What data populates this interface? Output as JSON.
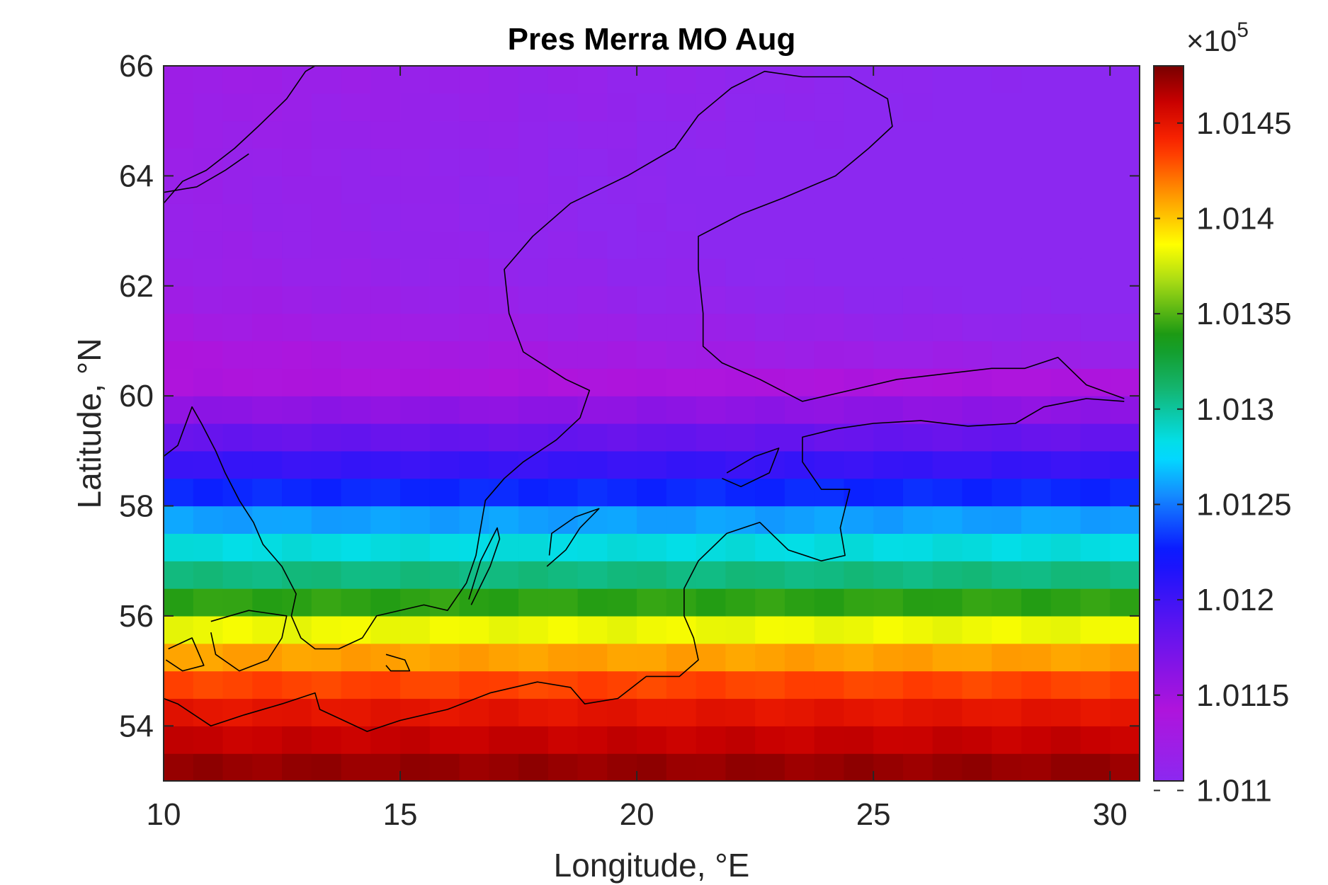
{
  "chart_data": {
    "type": "heatmap",
    "title": "Pres Merra MO Aug",
    "xlabel": "Longitude, °E",
    "ylabel": "Latitude, °N",
    "xlim": [
      10,
      30.625
    ],
    "ylim": [
      53,
      66
    ],
    "x_ticks": [
      10,
      15,
      20,
      25,
      30
    ],
    "y_ticks": [
      54,
      56,
      58,
      60,
      62,
      64,
      66
    ],
    "colorbar": {
      "multiplier_label": "×10",
      "multiplier_exponent": "5",
      "range": [
        1.01105,
        1.0148
      ],
      "ticks": [
        1.011,
        1.0115,
        1.012,
        1.0125,
        1.013,
        1.0135,
        1.014,
        1.0145
      ],
      "tick_labels": [
        "1.011",
        "1.0115",
        "1.012",
        "1.0125",
        "1.013",
        "1.0135",
        "1.014",
        "1.0145"
      ]
    },
    "grid": {
      "lon_start": 10,
      "lon_step": 0.625,
      "lat_start": 53,
      "lat_step": 0.5,
      "lon_count": 33,
      "lat_count": 26,
      "value_profile_by_lat": [
        {
          "lat": 53.0,
          "value": 1.01478
        },
        {
          "lat": 53.5,
          "value": 1.01468
        },
        {
          "lat": 54.0,
          "value": 1.01455
        },
        {
          "lat": 54.5,
          "value": 1.01445
        },
        {
          "lat": 55.0,
          "value": 1.0142
        },
        {
          "lat": 55.5,
          "value": 1.014
        },
        {
          "lat": 56.0,
          "value": 1.01365
        },
        {
          "lat": 56.5,
          "value": 1.0132
        },
        {
          "lat": 57.0,
          "value": 1.01295
        },
        {
          "lat": 57.5,
          "value": 1.01275
        },
        {
          "lat": 58.0,
          "value": 1.01245
        },
        {
          "lat": 58.5,
          "value": 1.01215
        },
        {
          "lat": 59.0,
          "value": 1.01192
        },
        {
          "lat": 59.5,
          "value": 1.0117
        },
        {
          "lat": 60.0,
          "value": 1.0115
        },
        {
          "lat": 60.5,
          "value": 1.01135
        },
        {
          "lat": 61.0,
          "value": 1.01125
        },
        {
          "lat": 61.5,
          "value": 1.01118
        },
        {
          "lat": 62.0,
          "value": 1.01112
        },
        {
          "lat": 63.0,
          "value": 1.01108
        },
        {
          "lat": 64.0,
          "value": 1.01108
        },
        {
          "lat": 65.0,
          "value": 1.01112
        },
        {
          "lat": 66.0,
          "value": 1.01115
        }
      ]
    },
    "coastline": {
      "color": "#000000",
      "segments": [
        [
          [
            10.0,
            58.9
          ],
          [
            10.3,
            59.1
          ],
          [
            10.6,
            59.8
          ],
          [
            10.8,
            59.5
          ],
          [
            11.1,
            59.0
          ],
          [
            11.3,
            58.6
          ],
          [
            11.6,
            58.1
          ],
          [
            11.9,
            57.7
          ],
          [
            12.1,
            57.3
          ],
          [
            12.5,
            56.9
          ],
          [
            12.8,
            56.4
          ],
          [
            12.7,
            56.0
          ],
          [
            12.9,
            55.6
          ],
          [
            13.2,
            55.4
          ],
          [
            13.7,
            55.4
          ],
          [
            14.2,
            55.6
          ],
          [
            14.5,
            56.0
          ],
          [
            15.5,
            56.2
          ],
          [
            16.0,
            56.1
          ],
          [
            16.4,
            56.6
          ],
          [
            16.6,
            57.1
          ],
          [
            16.7,
            57.6
          ],
          [
            16.8,
            58.1
          ],
          [
            17.2,
            58.5
          ],
          [
            17.6,
            58.8
          ],
          [
            18.3,
            59.2
          ],
          [
            18.8,
            59.6
          ],
          [
            19.0,
            60.1
          ],
          [
            18.5,
            60.3
          ],
          [
            17.6,
            60.8
          ],
          [
            17.3,
            61.5
          ],
          [
            17.2,
            62.3
          ],
          [
            17.8,
            62.9
          ],
          [
            18.6,
            63.5
          ],
          [
            19.8,
            64.0
          ],
          [
            20.8,
            64.5
          ],
          [
            21.3,
            65.1
          ],
          [
            22.0,
            65.6
          ],
          [
            22.7,
            65.9
          ],
          [
            23.5,
            65.8
          ],
          [
            24.5,
            65.8
          ],
          [
            25.3,
            65.4
          ],
          [
            25.4,
            64.9
          ],
          [
            24.9,
            64.5
          ],
          [
            24.2,
            64.0
          ],
          [
            23.1,
            63.6
          ],
          [
            22.2,
            63.3
          ],
          [
            21.3,
            62.9
          ],
          [
            21.3,
            62.3
          ],
          [
            21.4,
            61.5
          ],
          [
            21.4,
            60.9
          ],
          [
            21.8,
            60.6
          ],
          [
            22.6,
            60.3
          ],
          [
            23.5,
            59.9
          ],
          [
            24.5,
            60.1
          ],
          [
            25.5,
            60.3
          ],
          [
            26.5,
            60.4
          ],
          [
            27.5,
            60.5
          ],
          [
            28.2,
            60.5
          ],
          [
            28.9,
            60.7
          ],
          [
            29.5,
            60.2
          ],
          [
            30.3,
            59.95
          ]
        ],
        [
          [
            30.3,
            59.9
          ],
          [
            29.5,
            59.95
          ],
          [
            28.6,
            59.8
          ],
          [
            28.0,
            59.5
          ],
          [
            27.0,
            59.45
          ],
          [
            26.0,
            59.55
          ],
          [
            25.0,
            59.5
          ],
          [
            24.2,
            59.4
          ],
          [
            23.5,
            59.25
          ],
          [
            23.5,
            58.8
          ],
          [
            23.9,
            58.3
          ],
          [
            24.5,
            58.3
          ],
          [
            24.3,
            57.6
          ],
          [
            24.4,
            57.1
          ],
          [
            23.9,
            57.0
          ],
          [
            23.2,
            57.2
          ],
          [
            22.6,
            57.7
          ],
          [
            21.9,
            57.5
          ],
          [
            21.3,
            57.0
          ],
          [
            21.0,
            56.5
          ],
          [
            21.0,
            56.0
          ],
          [
            21.2,
            55.6
          ],
          [
            21.3,
            55.2
          ],
          [
            20.9,
            54.9
          ],
          [
            20.2,
            54.9
          ],
          [
            19.6,
            54.5
          ],
          [
            18.9,
            54.4
          ],
          [
            18.6,
            54.7
          ],
          [
            17.9,
            54.8
          ],
          [
            16.9,
            54.6
          ],
          [
            16.0,
            54.3
          ],
          [
            15.0,
            54.1
          ],
          [
            14.3,
            53.9
          ],
          [
            13.8,
            54.1
          ],
          [
            13.3,
            54.3
          ],
          [
            13.2,
            54.6
          ],
          [
            12.5,
            54.4
          ],
          [
            11.7,
            54.2
          ],
          [
            11.0,
            54.0
          ],
          [
            10.3,
            54.4
          ],
          [
            10.0,
            54.5
          ]
        ],
        [
          [
            10.0,
            63.5
          ],
          [
            10.4,
            63.9
          ],
          [
            10.9,
            64.1
          ],
          [
            11.5,
            64.5
          ],
          [
            12.0,
            64.9
          ],
          [
            12.6,
            65.4
          ],
          [
            13.0,
            65.9
          ],
          [
            13.2,
            66.0
          ]
        ],
        [
          [
            10.0,
            63.7
          ],
          [
            10.7,
            63.8
          ],
          [
            11.3,
            64.1
          ],
          [
            11.8,
            64.4
          ]
        ],
        [
          [
            16.5,
            56.2
          ],
          [
            16.9,
            56.9
          ],
          [
            17.1,
            57.4
          ],
          [
            17.05,
            57.6
          ],
          [
            16.7,
            57.0
          ],
          [
            16.45,
            56.3
          ]
        ],
        [
          [
            18.1,
            56.9
          ],
          [
            18.5,
            57.2
          ],
          [
            18.8,
            57.6
          ],
          [
            19.2,
            57.95
          ],
          [
            18.7,
            57.8
          ],
          [
            18.2,
            57.5
          ],
          [
            18.15,
            57.1
          ]
        ],
        [
          [
            21.9,
            58.6
          ],
          [
            22.5,
            58.9
          ],
          [
            23.0,
            59.05
          ],
          [
            22.8,
            58.6
          ],
          [
            22.2,
            58.35
          ],
          [
            21.8,
            58.5
          ]
        ],
        [
          [
            10.1,
            55.4
          ],
          [
            10.6,
            55.6
          ],
          [
            10.85,
            55.1
          ],
          [
            10.4,
            55.0
          ],
          [
            10.05,
            55.2
          ]
        ],
        [
          [
            11.0,
            55.9
          ],
          [
            11.8,
            56.1
          ],
          [
            12.6,
            56.0
          ],
          [
            12.5,
            55.6
          ],
          [
            12.2,
            55.2
          ],
          [
            11.6,
            55.0
          ],
          [
            11.1,
            55.3
          ],
          [
            11.0,
            55.7
          ]
        ],
        [
          [
            14.7,
            55.3
          ],
          [
            15.1,
            55.2
          ],
          [
            15.2,
            55.0
          ],
          [
            14.8,
            55.0
          ],
          [
            14.7,
            55.1
          ]
        ]
      ]
    }
  }
}
